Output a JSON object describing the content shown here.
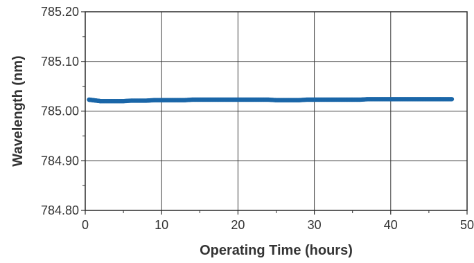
{
  "chart_data": {
    "type": "scatter",
    "title": "",
    "xlabel": "Operating Time (hours)",
    "ylabel": "Wavelength (nm)",
    "xlim": [
      0,
      50
    ],
    "ylim": [
      784.8,
      785.2
    ],
    "x_ticks": [
      "0",
      "10",
      "20",
      "30",
      "40",
      "50"
    ],
    "y_ticks": [
      "785.20",
      "785.10",
      "785.00",
      "784.90",
      "784.80"
    ],
    "grid": true,
    "series": [
      {
        "color": "#1a66a8",
        "x": [
          0.5,
          1,
          1.5,
          2,
          3,
          4,
          5,
          6,
          7,
          8,
          9,
          10,
          11,
          12,
          13,
          14,
          15,
          16,
          17,
          18,
          19,
          20,
          21,
          22,
          23,
          24,
          25,
          26,
          27,
          28,
          29,
          30,
          31,
          32,
          33,
          34,
          35,
          36,
          37,
          38,
          39,
          40,
          41,
          42,
          43,
          44,
          45,
          46,
          47,
          48
        ],
        "y": [
          785.023,
          785.022,
          785.021,
          785.02,
          785.02,
          785.02,
          785.02,
          785.021,
          785.021,
          785.021,
          785.022,
          785.022,
          785.022,
          785.022,
          785.022,
          785.023,
          785.023,
          785.023,
          785.023,
          785.023,
          785.023,
          785.023,
          785.023,
          785.023,
          785.023,
          785.023,
          785.022,
          785.022,
          785.022,
          785.022,
          785.023,
          785.023,
          785.023,
          785.023,
          785.023,
          785.023,
          785.023,
          785.023,
          785.024,
          785.024,
          785.024,
          785.024,
          785.024,
          785.024,
          785.024,
          785.024,
          785.024,
          785.024,
          785.024,
          785.024
        ]
      }
    ]
  }
}
